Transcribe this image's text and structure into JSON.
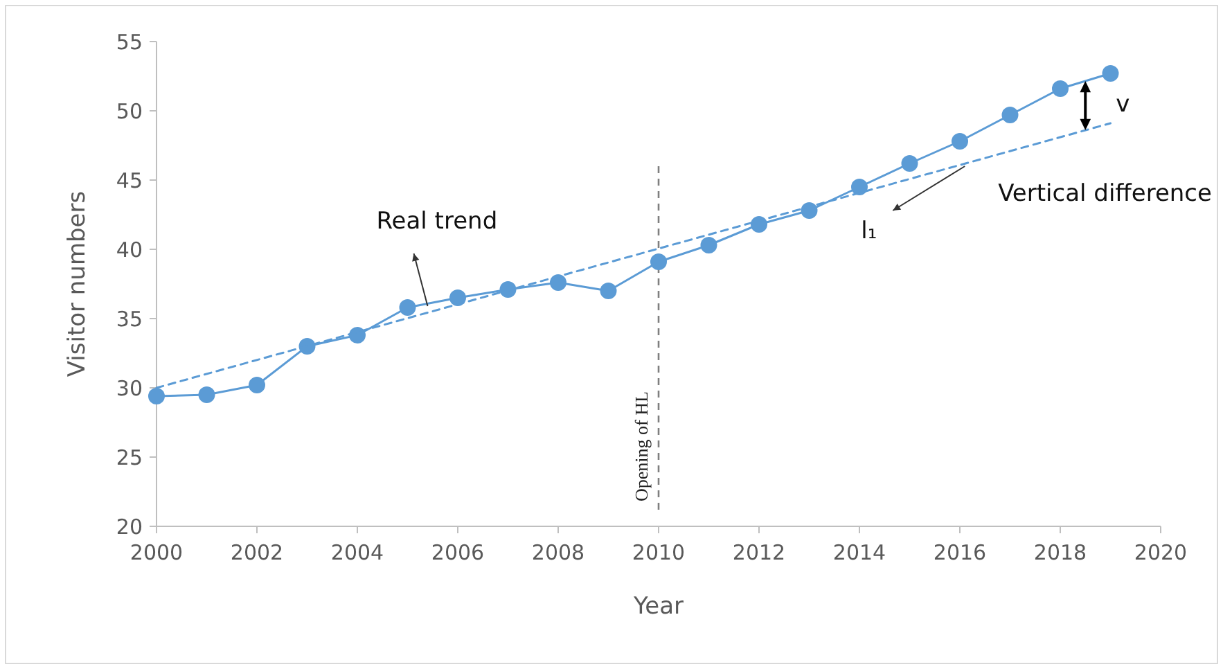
{
  "chart_data": {
    "type": "line",
    "xlabel": "Year",
    "ylabel": "Visitor numbers",
    "x": [
      2000,
      2001,
      2002,
      2003,
      2004,
      2005,
      2006,
      2007,
      2008,
      2009,
      2010,
      2011,
      2012,
      2013,
      2014,
      2015,
      2016,
      2017,
      2018,
      2019
    ],
    "series": [
      {
        "color": "#5b9bd5",
        "marker": "circle",
        "line_style": "solid",
        "values": [
          29.4,
          29.5,
          30.2,
          33.0,
          33.8,
          35.8,
          36.5,
          37.1,
          37.6,
          37.0,
          39.1,
          40.3,
          41.8,
          42.8,
          44.5,
          46.2,
          47.8,
          49.7,
          51.6,
          52.7
        ]
      },
      {
        "type": "line",
        "color": "#5b9bd5",
        "marker": "none",
        "line_style": "dashed",
        "x": [
          2000,
          2019
        ],
        "values": [
          30.0,
          49.1
        ]
      }
    ],
    "xlim": [
      2000,
      2020
    ],
    "xticks": [
      2000,
      2002,
      2004,
      2006,
      2008,
      2010,
      2012,
      2014,
      2016,
      2018,
      2020
    ],
    "ylim": [
      20,
      55
    ],
    "yticks": [
      20,
      25,
      30,
      35,
      40,
      45,
      50,
      55
    ],
    "grid": false,
    "ref_lines": [
      {
        "axis": "x",
        "value": 2010,
        "label": "Opening of HL",
        "color": "#7f7f7f",
        "line_style": "dashed"
      }
    ],
    "annotations": [
      {
        "text": "Real trend",
        "x": 2005.4,
        "y": 35.9
      },
      {
        "text": "l₁",
        "x": 2016.1,
        "y": 46.0
      },
      "v",
      "Vertical difference"
    ]
  }
}
